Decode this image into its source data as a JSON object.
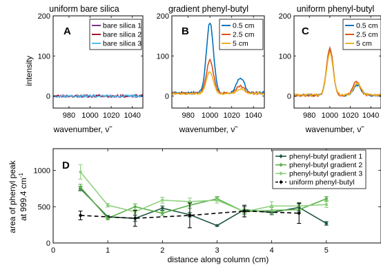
{
  "chart_data": [
    {
      "type": "line",
      "panel_label": "A",
      "title": "uniform bare silica",
      "xlabel": "wavenumber, ν̃",
      "ylabel": "intensity",
      "xlim": [
        965,
        1050
      ],
      "ylim": [
        -30,
        200
      ],
      "xticks": [
        980,
        1000,
        1020,
        1040
      ],
      "yticks": [
        0,
        100,
        200
      ],
      "legend_position": "top-right",
      "series": [
        {
          "name": "bare silica 1",
          "color": "#7e2f8e",
          "peaks": [],
          "noise": 3.0,
          "seed": 11
        },
        {
          "name": "bare silica 2",
          "color": "#a2142f",
          "peaks": [],
          "noise": 3.0,
          "seed": 23
        },
        {
          "name": "bare silica 3",
          "color": "#4dbeee",
          "peaks": [],
          "noise": 3.0,
          "seed": 37
        }
      ]
    },
    {
      "type": "line",
      "panel_label": "B",
      "title": "gradient phenyl-butyl",
      "xlabel": "wavenumber, ν̃",
      "ylabel": "",
      "xlim": [
        965,
        1050
      ],
      "ylim": [
        -30,
        200
      ],
      "xticks": [
        980,
        1000,
        1020,
        1040
      ],
      "yticks": [
        0,
        100,
        200
      ],
      "legend_position": "top-right",
      "series": [
        {
          "name": "0.5 cm",
          "color": "#0072bd",
          "peaks": [
            [
              1000,
              175,
              3.2
            ],
            [
              1028,
              38,
              3.5
            ]
          ],
          "baseline": 8,
          "noise": 3.0,
          "seed": 5
        },
        {
          "name": "2.5 cm",
          "color": "#d95319",
          "peaks": [
            [
              1000,
              82,
              3.2
            ],
            [
              1028,
              18,
              3.5
            ]
          ],
          "baseline": 7,
          "noise": 2.5,
          "seed": 9
        },
        {
          "name": "5 cm",
          "color": "#edb120",
          "peaks": [
            [
              1000,
              55,
              3.2
            ],
            [
              1028,
              12,
              3.5
            ]
          ],
          "baseline": 6,
          "noise": 2.5,
          "seed": 17
        }
      ]
    },
    {
      "type": "line",
      "panel_label": "C",
      "title": "uniform phenyl-butyl",
      "xlabel": "wavenumber, ν̃",
      "ylabel": "",
      "xlim": [
        965,
        1050
      ],
      "ylim": [
        -30,
        200
      ],
      "xticks": [
        980,
        1000,
        1020,
        1040
      ],
      "yticks": [
        0,
        100,
        200
      ],
      "legend_position": "top-right",
      "series": [
        {
          "name": "0.5 cm",
          "color": "#0072bd",
          "peaks": [
            [
              1000,
              112,
              3.2
            ],
            [
              1027,
              25,
              3.5
            ]
          ],
          "baseline": 2,
          "noise": 2.5,
          "seed": 41
        },
        {
          "name": "2.5 cm",
          "color": "#d95319",
          "peaks": [
            [
              1000,
              118,
              3.2
            ],
            [
              1026,
              35,
              3.5
            ]
          ],
          "baseline": 2,
          "noise": 3.0,
          "seed": 53
        },
        {
          "name": "5 cm",
          "color": "#edb120",
          "peaks": [
            [
              1000,
              105,
              3.2
            ],
            [
              1027,
              28,
              3.5
            ]
          ],
          "baseline": 3,
          "noise": 2.5,
          "seed": 61
        }
      ]
    },
    {
      "type": "line",
      "panel_label": "D",
      "xlabel": "distance along column (cm)",
      "ylabel_line1": "area of phenyl peak",
      "ylabel_line2": "at 999.4 cm",
      "ylabel_sup": "-1",
      "xlim": [
        0,
        6
      ],
      "ylim": [
        0,
        1300
      ],
      "xticks": [
        0,
        1,
        2,
        3,
        4,
        5
      ],
      "yticks": [
        0,
        500,
        1000
      ],
      "legend_position": "top-right",
      "series": [
        {
          "name": "phenyl-butyl gradient 1",
          "color": "#1e5641",
          "dashed": false,
          "x": [
            0.5,
            1,
            1.5,
            2,
            2.5,
            3,
            3.5,
            4,
            4.5,
            5
          ],
          "y": [
            750,
            360,
            340,
            480,
            390,
            240,
            460,
            420,
            490,
            270
          ],
          "err": [
            30,
            20,
            40,
            30,
            30,
            10,
            40,
            30,
            50,
            25
          ]
        },
        {
          "name": "phenyl-butyl gradient 2",
          "color": "#5ab04a",
          "dashed": false,
          "x": [
            0.5,
            1,
            1.5,
            2,
            2.5,
            3,
            3.5,
            4,
            4.5,
            5
          ],
          "y": [
            770,
            340,
            500,
            410,
            520,
            610,
            430,
            450,
            460,
            610
          ],
          "err": [
            40,
            20,
            40,
            30,
            40,
            30,
            30,
            40,
            40,
            30
          ]
        },
        {
          "name": "phenyl-butyl gradient 3",
          "color": "#8fd07e",
          "dashed": false,
          "x": [
            0.5,
            1,
            1.5,
            2,
            2.5,
            3,
            3.5,
            4,
            4.5,
            5
          ],
          "y": [
            980,
            520,
            430,
            590,
            570,
            590,
            430,
            510,
            510,
            530
          ],
          "err": [
            100,
            25,
            30,
            40,
            50,
            40,
            40,
            60,
            50,
            40
          ]
        },
        {
          "name": "uniform phenyl-butyl",
          "color": "#000000",
          "dashed": true,
          "x": [
            0.5,
            1.5,
            2.5,
            3.5,
            4.5
          ],
          "y": [
            380,
            340,
            380,
            440,
            410
          ],
          "err": [
            60,
            110,
            170,
            80,
            140
          ]
        }
      ]
    }
  ]
}
